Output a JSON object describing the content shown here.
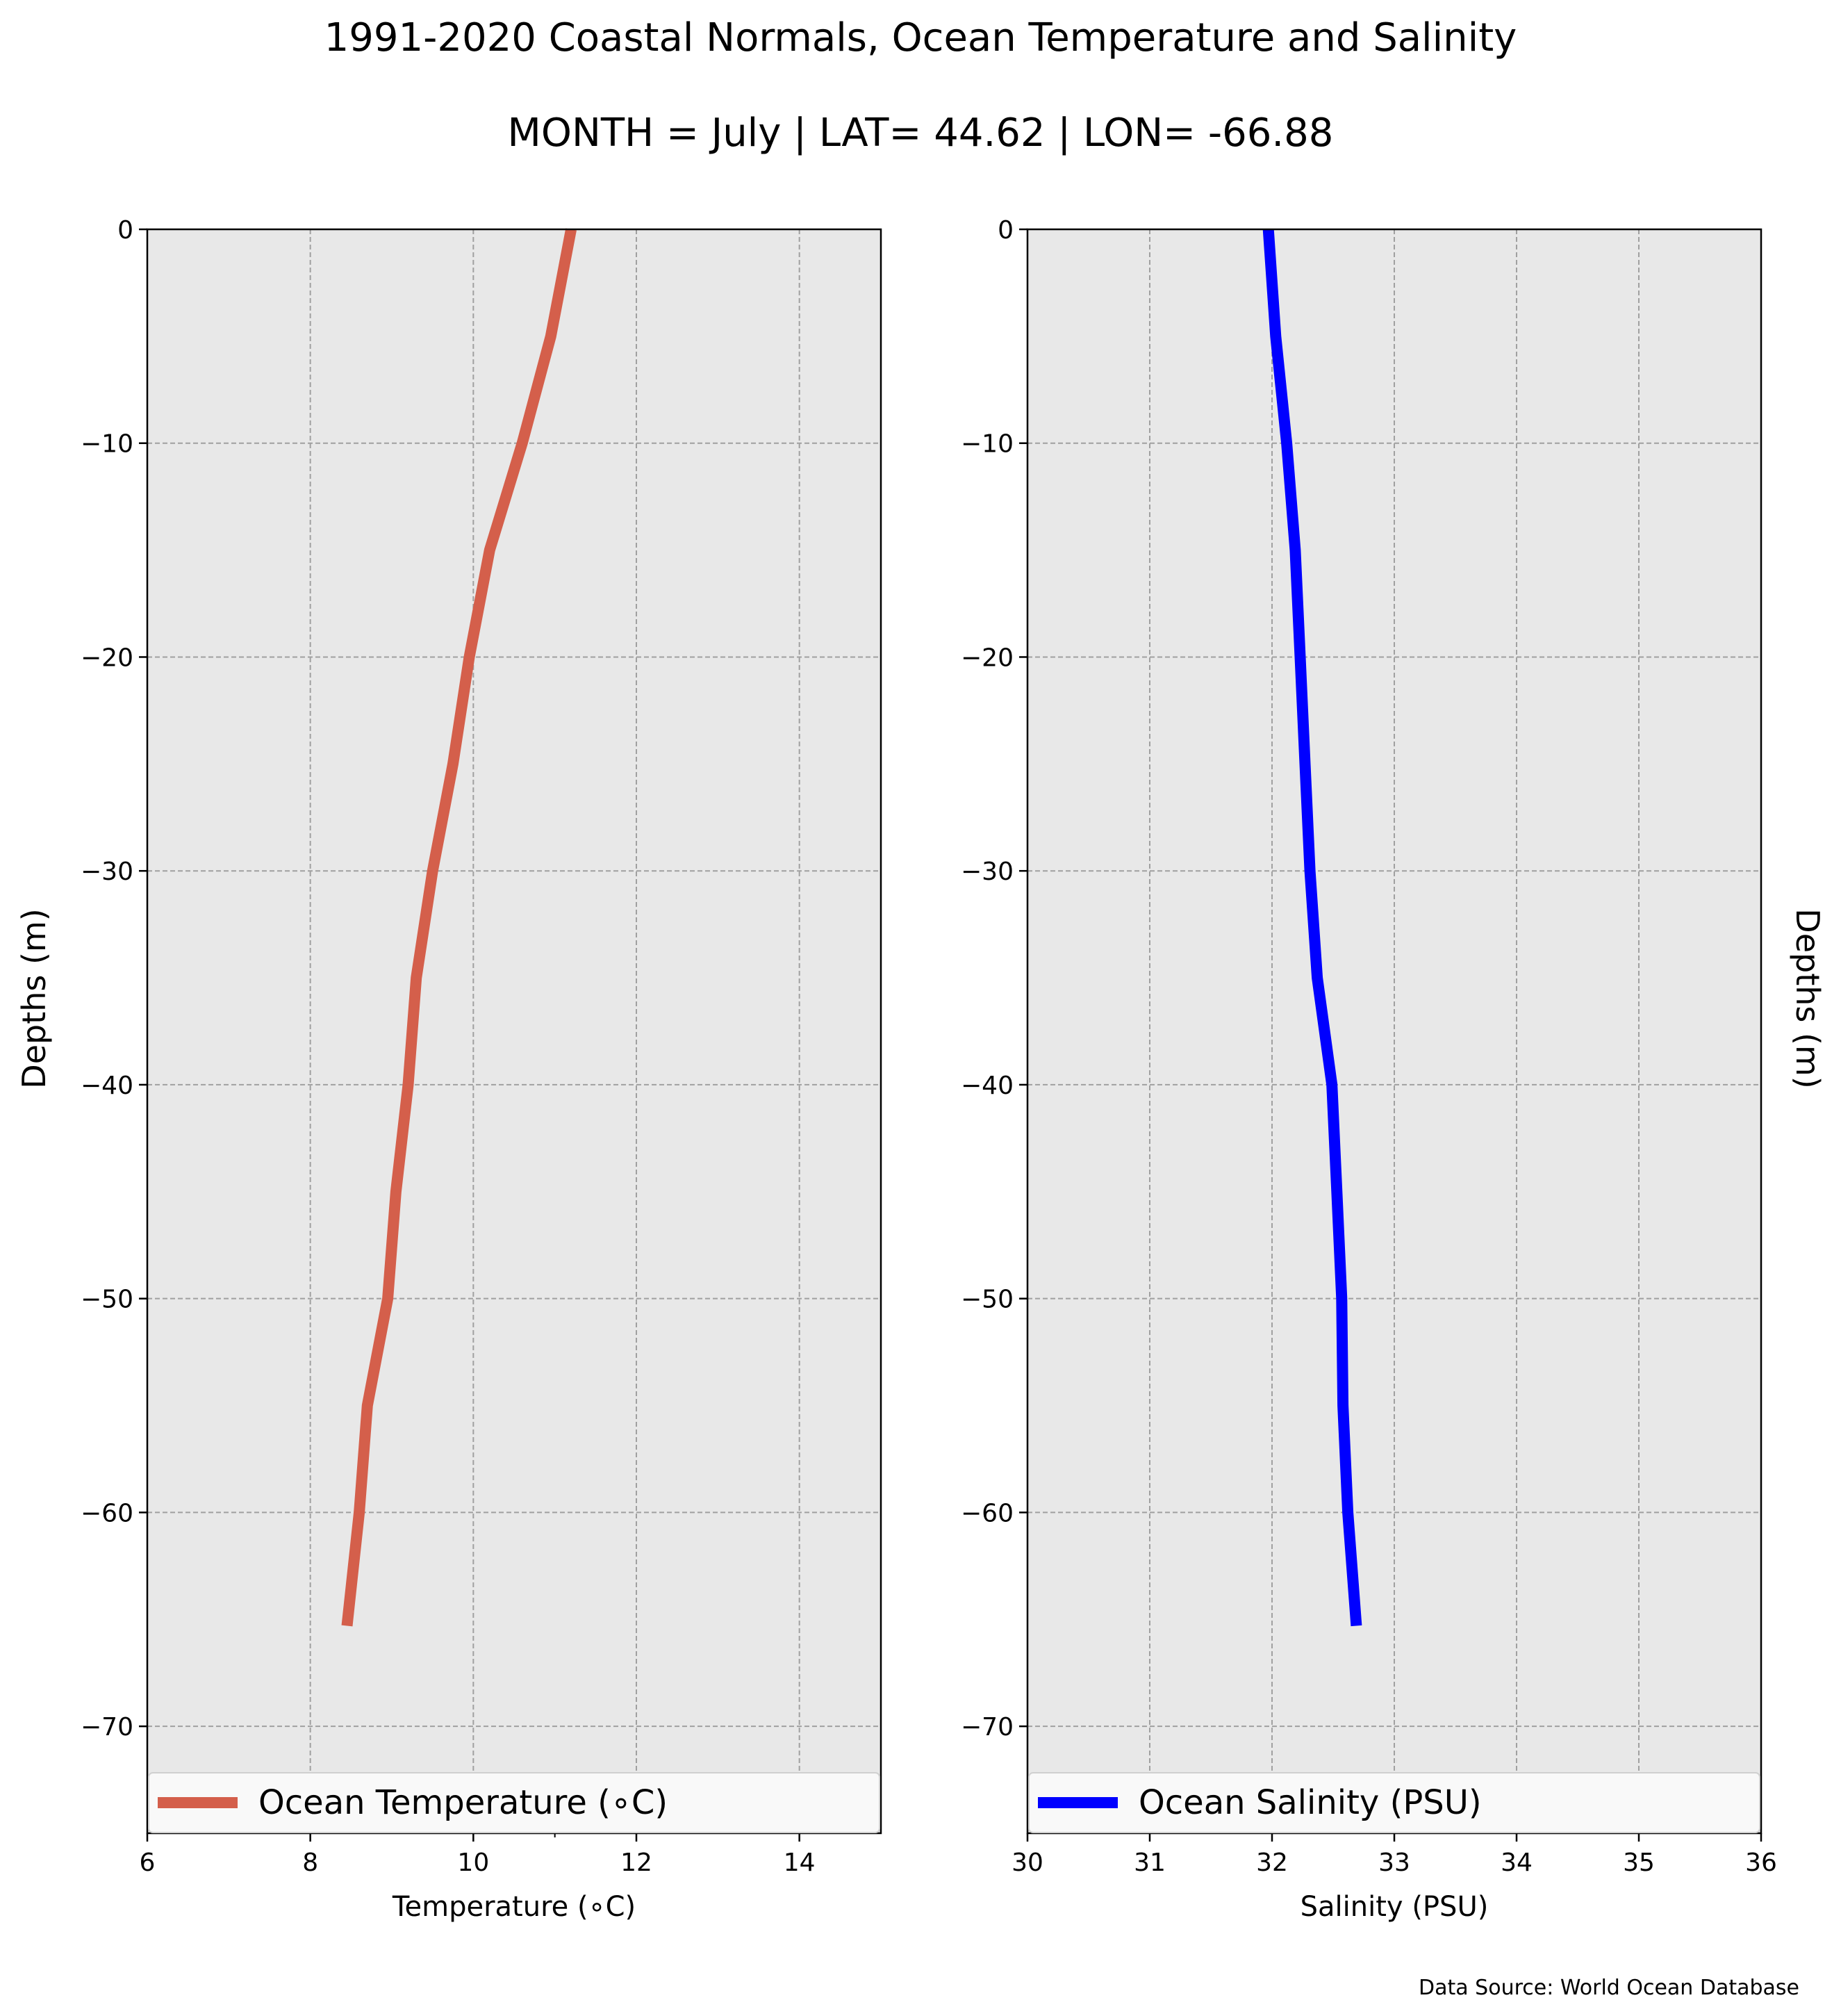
{
  "figure": {
    "title": "1991-2020 Coastal Normals, Ocean Temperature and Salinity",
    "subtitle": "MONTH = July | LAT= 44.62 | LON= -66.88",
    "source": "Data Source: World Ocean Database"
  },
  "chart_data": [
    {
      "type": "line",
      "xlabel": "Temperature ($^\\circ$C)",
      "xlabel_display": "Temperature (∘C)",
      "ylabel": "Depths (m)",
      "xlim": [
        6,
        15
      ],
      "ylim": [
        -75,
        0
      ],
      "xticks": [
        6,
        8,
        10,
        12,
        14
      ],
      "yticks": [
        0,
        -10,
        -20,
        -30,
        -40,
        -50,
        -60,
        -70
      ],
      "grid": true,
      "legend_position": "lower center",
      "series": [
        {
          "name": "Ocean Temperature (∘C)",
          "color": "#d45f4b",
          "x": [
            11.2,
            10.95,
            10.6,
            10.2,
            9.95,
            9.75,
            9.5,
            9.3,
            9.2,
            9.05,
            8.95,
            8.7,
            8.6,
            8.45
          ],
          "y": [
            0,
            -5,
            -10,
            -15,
            -20,
            -25,
            -30,
            -35,
            -40,
            -45,
            -50,
            -55,
            -60,
            -65.3
          ]
        }
      ]
    },
    {
      "type": "line",
      "xlabel": "Salinity (PSU)",
      "ylabel": "Depths (m)",
      "xlim": [
        30,
        36
      ],
      "ylim": [
        -75,
        0
      ],
      "xticks": [
        30,
        31,
        32,
        33,
        34,
        35,
        36
      ],
      "yticks": [
        0,
        -10,
        -20,
        -30,
        -40,
        -50,
        -60,
        -70
      ],
      "grid": true,
      "legend_position": "lower center",
      "series": [
        {
          "name": "Ocean Salinity (PSU)",
          "color": "#0000ff",
          "x": [
            31.97,
            32.03,
            32.12,
            32.19,
            32.23,
            32.27,
            32.31,
            32.37,
            32.49,
            32.53,
            32.57,
            32.58,
            32.62,
            32.69
          ],
          "y": [
            0,
            -5,
            -10,
            -15,
            -20,
            -25,
            -30,
            -35,
            -40,
            -45,
            -50,
            -55,
            -60,
            -65.3
          ]
        }
      ]
    }
  ]
}
